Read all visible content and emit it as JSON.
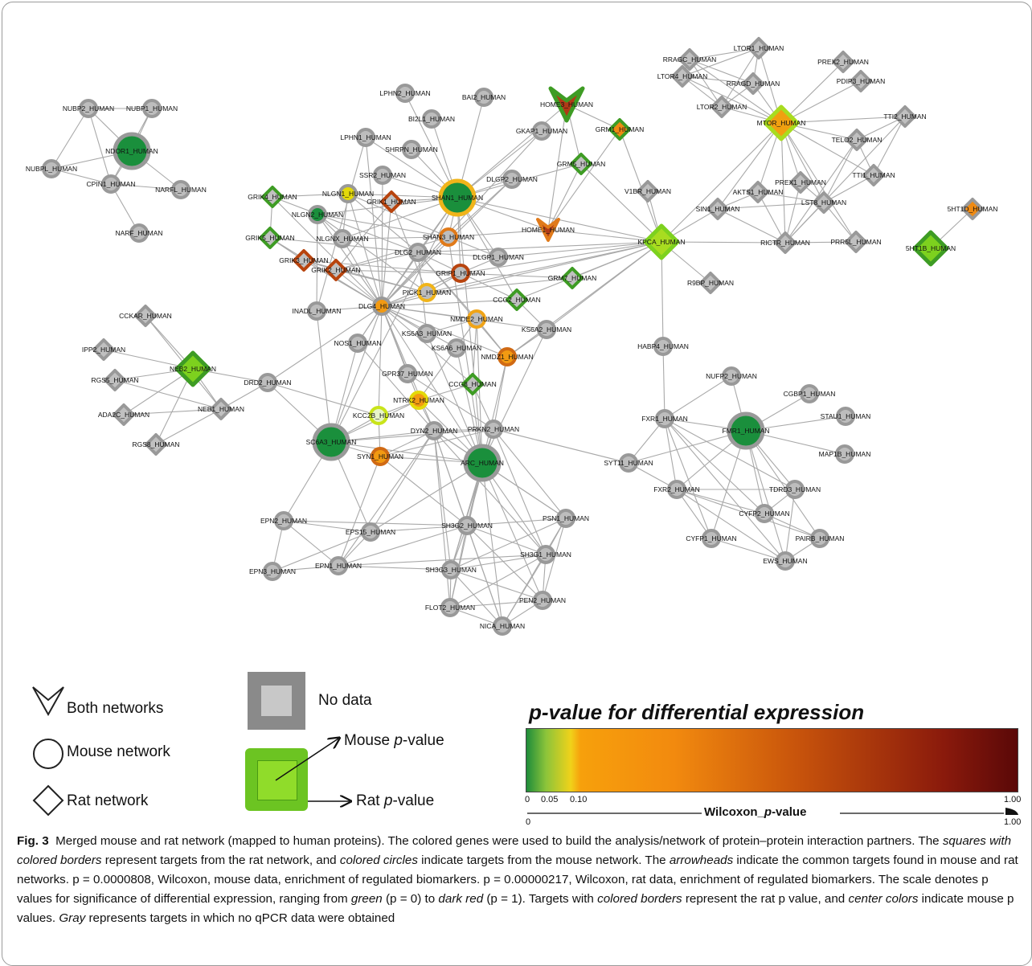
{
  "network": {
    "nodes": [
      {
        "id": "NUBP2_HUMAN",
        "shape": "circle",
        "fill": "#bdbdbd",
        "border": "#999999"
      },
      {
        "id": "NUBP1_HUMAN",
        "shape": "circle",
        "fill": "#bdbdbd",
        "border": "#999999"
      },
      {
        "id": "NDOR1_HUMAN",
        "shape": "circle",
        "fill": "#1a8f3c",
        "border": "#999999",
        "big": true
      },
      {
        "id": "NUBPL_HUMAN",
        "shape": "circle",
        "fill": "#bdbdbd",
        "border": "#999999"
      },
      {
        "id": "CPIN1_HUMAN",
        "shape": "circle",
        "fill": "#bdbdbd",
        "border": "#999999"
      },
      {
        "id": "NARFL_HUMAN",
        "shape": "circle",
        "fill": "#bdbdbd",
        "border": "#999999"
      },
      {
        "id": "NARF_HUMAN",
        "shape": "circle",
        "fill": "#bdbdbd",
        "border": "#999999"
      },
      {
        "id": "LPHN2_HUMAN",
        "shape": "circle",
        "fill": "#bdbdbd",
        "border": "#999999"
      },
      {
        "id": "BAI2_HUMAN",
        "shape": "circle",
        "fill": "#bdbdbd",
        "border": "#999999"
      },
      {
        "id": "BI2L1_HUMAN",
        "shape": "circle",
        "fill": "#bdbdbd",
        "border": "#999999"
      },
      {
        "id": "HOME3_HUMAN",
        "shape": "arrow",
        "fill": "#b13a16",
        "border": "#3e9c24",
        "big": true
      },
      {
        "id": "GRM1_HUMAN",
        "shape": "diamond",
        "fill": "#ef8a12",
        "border": "#3e9c24"
      },
      {
        "id": "GKAP1_HUMAN",
        "shape": "circle",
        "fill": "#bdbdbd",
        "border": "#999999"
      },
      {
        "id": "LPHN1_HUMAN",
        "shape": "circle",
        "fill": "#bdbdbd",
        "border": "#999999"
      },
      {
        "id": "SHRPN_HUMAN",
        "shape": "circle",
        "fill": "#bdbdbd",
        "border": "#999999"
      },
      {
        "id": "GRM5_HUMAN",
        "shape": "diamond",
        "fill": "#c0c0c0",
        "border": "#3e9c24"
      },
      {
        "id": "SSR2_HUMAN",
        "shape": "circle",
        "fill": "#bdbdbd",
        "border": "#999999"
      },
      {
        "id": "DLGP2_HUMAN",
        "shape": "circle",
        "fill": "#bdbdbd",
        "border": "#999999"
      },
      {
        "id": "GRIK4_HUMAN",
        "shape": "diamond",
        "fill": "#c0c0c0",
        "border": "#3e9c24"
      },
      {
        "id": "NLGN1_HUMAN",
        "shape": "circle",
        "fill": "#e3d90a",
        "border": "#999999"
      },
      {
        "id": "GRIK1_HUMAN",
        "shape": "diamond",
        "fill": "#c0c0c0",
        "border": "#b8440e"
      },
      {
        "id": "SHAN1_HUMAN",
        "shape": "circle",
        "fill": "#1a8f3c",
        "border": "#f0b41a",
        "big": true
      },
      {
        "id": "NLGN2_HUMAN",
        "shape": "circle",
        "fill": "#1a8f3c",
        "border": "#999999"
      },
      {
        "id": "GRIK5_HUMAN",
        "shape": "diamond",
        "fill": "#c0c0c0",
        "border": "#3e9c24"
      },
      {
        "id": "NLGNX_HUMAN",
        "shape": "circle",
        "fill": "#bdbdbd",
        "border": "#999999"
      },
      {
        "id": "SHAN3_HUMAN",
        "shape": "circle",
        "fill": "#bdbdbd",
        "border": "#e07a1a"
      },
      {
        "id": "HOME1_HUMAN",
        "shape": "arrow",
        "fill": "#b13a16",
        "border": "#e07a1a"
      },
      {
        "id": "DLG2_HUMAN",
        "shape": "circle",
        "fill": "#bdbdbd",
        "border": "#999999"
      },
      {
        "id": "DLGP1_HUMAN",
        "shape": "circle",
        "fill": "#bdbdbd",
        "border": "#999999"
      },
      {
        "id": "GRIK3_HUMAN",
        "shape": "diamond",
        "fill": "#c0c0c0",
        "border": "#b8440e"
      },
      {
        "id": "GRIK2_HUMAN",
        "shape": "diamond",
        "fill": "#c0c0c0",
        "border": "#b8440e"
      },
      {
        "id": "GRIP1_HUMAN",
        "shape": "circle",
        "fill": "#bdbdbd",
        "border": "#b8440e"
      },
      {
        "id": "GRM7_HUMAN",
        "shape": "diamond",
        "fill": "#c0c0c0",
        "border": "#3e9c24"
      },
      {
        "id": "PICK1_HUMAN",
        "shape": "circle",
        "fill": "#bdbdbd",
        "border": "#f0b41a"
      },
      {
        "id": "INADL_HUMAN",
        "shape": "circle",
        "fill": "#bdbdbd",
        "border": "#999999"
      },
      {
        "id": "DLG4_HUMAN",
        "shape": "circle",
        "fill": "#f29a12",
        "border": "#999999"
      },
      {
        "id": "CCG2_HUMAN",
        "shape": "diamond",
        "fill": "#c0c0c0",
        "border": "#3e9c24"
      },
      {
        "id": "NMDE2_HUMAN",
        "shape": "circle",
        "fill": "#bdbdbd",
        "border": "#f0a418"
      },
      {
        "id": "KS6A3_HUMAN",
        "shape": "circle",
        "fill": "#bdbdbd",
        "border": "#999999"
      },
      {
        "id": "KS6A2_HUMAN",
        "shape": "circle",
        "fill": "#bdbdbd",
        "border": "#999999"
      },
      {
        "id": "NOS1_HUMAN",
        "shape": "circle",
        "fill": "#bdbdbd",
        "border": "#999999"
      },
      {
        "id": "KS6A6_HUMAN",
        "shape": "circle",
        "fill": "#bdbdbd",
        "border": "#999999"
      },
      {
        "id": "NMDZ1_HUMAN",
        "shape": "circle",
        "fill": "#f29a12",
        "border": "#d06a14"
      },
      {
        "id": "GPR37_HUMAN",
        "shape": "circle",
        "fill": "#bdbdbd",
        "border": "#999999"
      },
      {
        "id": "CCG8_HUMAN",
        "shape": "diamond",
        "fill": "#c0c0c0",
        "border": "#3e9c24"
      },
      {
        "id": "NTRK2_HUMAN",
        "shape": "circle",
        "fill": "#f29a12",
        "border": "#e3d90a"
      },
      {
        "id": "KCC2B_HUMAN",
        "shape": "circle",
        "fill": "#e8f5c8",
        "border": "#c9e41a"
      },
      {
        "id": "DYN2_HUMAN",
        "shape": "circle",
        "fill": "#bdbdbd",
        "border": "#999999"
      },
      {
        "id": "PRKN2_HUMAN",
        "shape": "circle",
        "fill": "#bdbdbd",
        "border": "#999999"
      },
      {
        "id": "SC6A3_HUMAN",
        "shape": "circle",
        "fill": "#1a8f3c",
        "border": "#999999",
        "big": true
      },
      {
        "id": "SYN1_HUMAN",
        "shape": "circle",
        "fill": "#f29a12",
        "border": "#d06a14"
      },
      {
        "id": "ARC_HUMAN",
        "shape": "circle",
        "fill": "#1a8f3c",
        "border": "#999999",
        "big": true
      },
      {
        "id": "CCKAR_HUMAN",
        "shape": "diamond",
        "fill": "#c0c0c0",
        "border": "#999999"
      },
      {
        "id": "IPP2_HUMAN",
        "shape": "diamond",
        "fill": "#c0c0c0",
        "border": "#999999"
      },
      {
        "id": "NEB2_HUMAN",
        "shape": "diamond",
        "fill": "#7dd11e",
        "border": "#3e9c24",
        "big": true
      },
      {
        "id": "RGS5_HUMAN",
        "shape": "diamond",
        "fill": "#c0c0c0",
        "border": "#999999"
      },
      {
        "id": "DRD2_HUMAN",
        "shape": "circle",
        "fill": "#bdbdbd",
        "border": "#999999"
      },
      {
        "id": "NEB1_HUMAN",
        "shape": "diamond",
        "fill": "#c0c0c0",
        "border": "#999999"
      },
      {
        "id": "ADA2C_HUMAN",
        "shape": "diamond",
        "fill": "#c0c0c0",
        "border": "#999999"
      },
      {
        "id": "RGS8_HUMAN",
        "shape": "diamond",
        "fill": "#c0c0c0",
        "border": "#999999"
      },
      {
        "id": "EPN2_HUMAN",
        "shape": "circle",
        "fill": "#bdbdbd",
        "border": "#999999"
      },
      {
        "id": "EPS15_HUMAN",
        "shape": "circle",
        "fill": "#bdbdbd",
        "border": "#999999"
      },
      {
        "id": "EPN1_HUMAN",
        "shape": "circle",
        "fill": "#bdbdbd",
        "border": "#999999"
      },
      {
        "id": "EPN3_HUMAN",
        "shape": "circle",
        "fill": "#bdbdbd",
        "border": "#999999"
      },
      {
        "id": "SH3G2_HUMAN",
        "shape": "circle",
        "fill": "#bdbdbd",
        "border": "#999999"
      },
      {
        "id": "PSN1_HUMAN",
        "shape": "circle",
        "fill": "#bdbdbd",
        "border": "#999999"
      },
      {
        "id": "SH3G1_HUMAN",
        "shape": "circle",
        "fill": "#bdbdbd",
        "border": "#999999"
      },
      {
        "id": "SH3G3_HUMAN",
        "shape": "circle",
        "fill": "#bdbdbd",
        "border": "#999999"
      },
      {
        "id": "PEN2_HUMAN",
        "shape": "circle",
        "fill": "#bdbdbd",
        "border": "#999999"
      },
      {
        "id": "FLOT2_HUMAN",
        "shape": "circle",
        "fill": "#bdbdbd",
        "border": "#999999"
      },
      {
        "id": "NICA_HUMAN",
        "shape": "circle",
        "fill": "#bdbdbd",
        "border": "#999999"
      },
      {
        "id": "RRAGC_HUMAN",
        "shape": "diamond",
        "fill": "#c0c0c0",
        "border": "#999999"
      },
      {
        "id": "LTOR1_HUMAN",
        "shape": "diamond",
        "fill": "#c0c0c0",
        "border": "#999999"
      },
      {
        "id": "LTOR4_HUMAN",
        "shape": "diamond",
        "fill": "#c0c0c0",
        "border": "#999999"
      },
      {
        "id": "RRAGD_HUMAN",
        "shape": "diamond",
        "fill": "#c0c0c0",
        "border": "#999999"
      },
      {
        "id": "PREX2_HUMAN",
        "shape": "diamond",
        "fill": "#c0c0c0",
        "border": "#999999"
      },
      {
        "id": "PDIP3_HUMAN",
        "shape": "diamond",
        "fill": "#c0c0c0",
        "border": "#999999"
      },
      {
        "id": "LTOR2_HUMAN",
        "shape": "diamond",
        "fill": "#c0c0c0",
        "border": "#999999"
      },
      {
        "id": "MTOR_HUMAN",
        "shape": "diamond",
        "fill": "#f0a010",
        "border": "#a8dc20",
        "big": true
      },
      {
        "id": "TTI2_HUMAN",
        "shape": "diamond",
        "fill": "#c0c0c0",
        "border": "#999999"
      },
      {
        "id": "TELO2_HUMAN",
        "shape": "diamond",
        "fill": "#c0c0c0",
        "border": "#999999"
      },
      {
        "id": "TTI1_HUMAN",
        "shape": "diamond",
        "fill": "#c0c0c0",
        "border": "#999999"
      },
      {
        "id": "V1BR_HUMAN",
        "shape": "diamond",
        "fill": "#c0c0c0",
        "border": "#999999"
      },
      {
        "id": "AKTS1_HUMAN",
        "shape": "diamond",
        "fill": "#c0c0c0",
        "border": "#999999"
      },
      {
        "id": "PREX1_HUMAN",
        "shape": "diamond",
        "fill": "#c0c0c0",
        "border": "#999999"
      },
      {
        "id": "SIN1_HUMAN",
        "shape": "diamond",
        "fill": "#c0c0c0",
        "border": "#999999"
      },
      {
        "id": "LST8_HUMAN",
        "shape": "diamond",
        "fill": "#c0c0c0",
        "border": "#999999"
      },
      {
        "id": "KPCA_HUMAN",
        "shape": "diamond",
        "fill": "#a8dc20",
        "border": "#7dd11e",
        "big": true
      },
      {
        "id": "RICTR_HUMAN",
        "shape": "diamond",
        "fill": "#c0c0c0",
        "border": "#999999"
      },
      {
        "id": "PRR5L_HUMAN",
        "shape": "diamond",
        "fill": "#c0c0c0",
        "border": "#999999"
      },
      {
        "id": "R9BP_HUMAN",
        "shape": "diamond",
        "fill": "#c0c0c0",
        "border": "#999999"
      },
      {
        "id": "5HT1D_HUMAN",
        "shape": "diamond",
        "fill": "#ef8a12",
        "border": "#999999"
      },
      {
        "id": "5HT1B_HUMAN",
        "shape": "diamond",
        "fill": "#7dd11e",
        "border": "#3e9c24",
        "big": true
      },
      {
        "id": "HABP4_HUMAN",
        "shape": "circle",
        "fill": "#bdbdbd",
        "border": "#999999"
      },
      {
        "id": "NUFP2_HUMAN",
        "shape": "circle",
        "fill": "#bdbdbd",
        "border": "#999999"
      },
      {
        "id": "CGBP1_HUMAN",
        "shape": "circle",
        "fill": "#bdbdbd",
        "border": "#999999"
      },
      {
        "id": "FXR1_HUMAN",
        "shape": "circle",
        "fill": "#bdbdbd",
        "border": "#999999"
      },
      {
        "id": "FMR1_HUMAN",
        "shape": "circle",
        "fill": "#1a8f3c",
        "border": "#999999",
        "big": true
      },
      {
        "id": "STAU1_HUMAN",
        "shape": "circle",
        "fill": "#bdbdbd",
        "border": "#999999"
      },
      {
        "id": "SYT11_HUMAN",
        "shape": "circle",
        "fill": "#bdbdbd",
        "border": "#999999"
      },
      {
        "id": "MAP1B_HUMAN",
        "shape": "circle",
        "fill": "#bdbdbd",
        "border": "#999999"
      },
      {
        "id": "FXR2_HUMAN",
        "shape": "circle",
        "fill": "#bdbdbd",
        "border": "#999999"
      },
      {
        "id": "TDRD3_HUMAN",
        "shape": "circle",
        "fill": "#bdbdbd",
        "border": "#999999"
      },
      {
        "id": "CYFP2_HUMAN",
        "shape": "circle",
        "fill": "#bdbdbd",
        "border": "#999999"
      },
      {
        "id": "CYFP1_HUMAN",
        "shape": "circle",
        "fill": "#bdbdbd",
        "border": "#999999"
      },
      {
        "id": "PAIRB_HUMAN",
        "shape": "circle",
        "fill": "#bdbdbd",
        "border": "#999999"
      },
      {
        "id": "EWS_HUMAN",
        "shape": "circle",
        "fill": "#bdbdbd",
        "border": "#999999"
      }
    ]
  },
  "legend": {
    "both_networks": "Both networks",
    "mouse_network": "Mouse network",
    "rat_network": "Rat network",
    "no_data": "No data",
    "mouse_p_value_prefix": "Mouse ",
    "rat_p_value_prefix": "Rat ",
    "p_value_italic": "p",
    "p_value_suffix": "-value"
  },
  "scale": {
    "title_italic": "p",
    "title_rest": "-value for differential expression",
    "gradient_colors": [
      "#1e8c3a",
      "#8cc43a",
      "#f0d21a",
      "#f7a00c",
      "#f28a0e",
      "#c8540c",
      "#8a1a0c",
      "#5a0808"
    ],
    "ticks": [
      "0",
      "0.05",
      "0.10"
    ],
    "max_label": "1.00",
    "axis_label_bold": "Wilcoxon_",
    "axis_label_italic": "p",
    "axis_label_rest": "-value",
    "axis_min": "0",
    "axis_max": "1.00"
  },
  "caption": {
    "fig_label": "Fig. 3",
    "text_1": "Merged mouse and rat network (mapped to human proteins). The colored genes were used to build the analysis/network of protein–protein interaction partners. The ",
    "em_squares": "squares with colored borders",
    "text_2": " represent targets from the rat network, and ",
    "em_circles": "colored circles",
    "text_3": " indicate targets from the mouse network. The ",
    "em_arrowheads": "arrowheads",
    "text_4": " indicate the common targets found in mouse and rat networks. ",
    "stat_1": "p = 0.0000808, Wilcoxon, mouse data, enrichment of regulated biomarkers. ",
    "stat_2": "p = 0.00000217, Wilcoxon, rat data, enrichment of regulated biomarkers. ",
    "text_5": "The scale denotes p values for significance of differential expression, ranging from ",
    "em_green": "green",
    "text_6": " (p = 0) to ",
    "em_darkred": "dark red",
    "text_7": " (p = 1). Targets with ",
    "em_colored_borders": "colored borders",
    "text_8": " represent the rat p value, and ",
    "em_center_colors": "center colors",
    "text_9": " indicate mouse p values. ",
    "em_gray": "Gray",
    "text_10": " represents targets in which no qPCR data were obtained"
  }
}
